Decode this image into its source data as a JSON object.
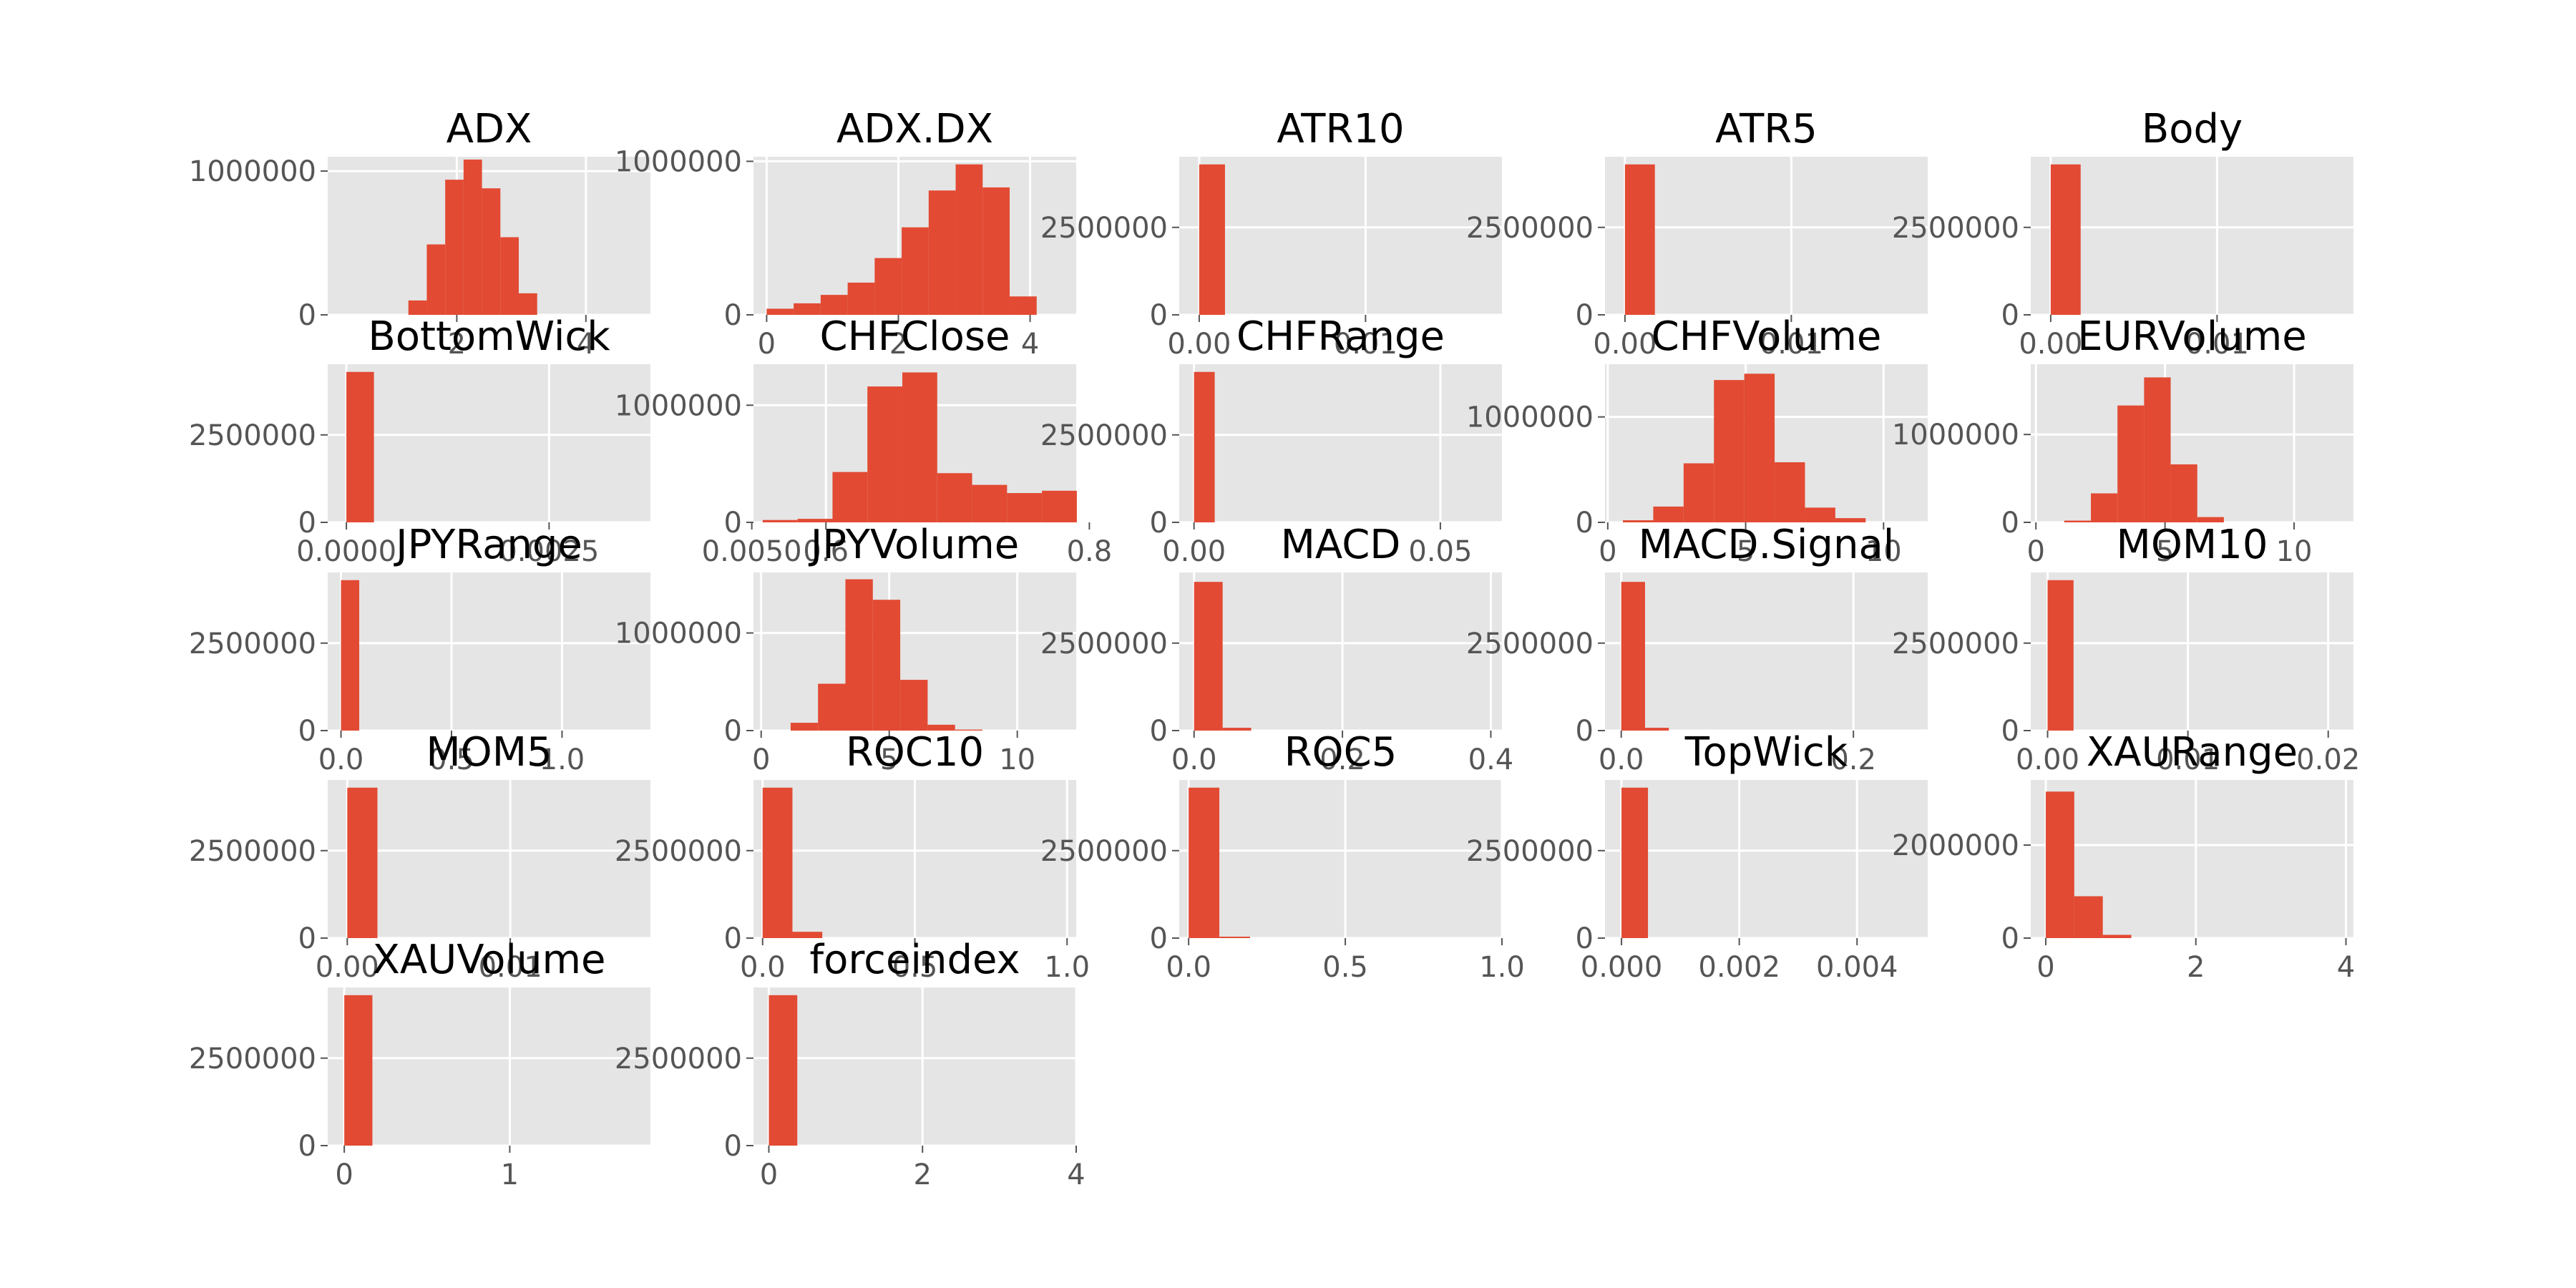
{
  "chart_data": [
    {
      "type": "bar",
      "title": "ADX",
      "bins": {
        "start": 1.25,
        "width": 0.285,
        "counts": [
          100000,
          490000,
          940000,
          1080000,
          880000,
          540000,
          150000
        ]
      },
      "xlim": [
        0,
        5
      ],
      "ylim": [
        0,
        1100000
      ],
      "xticks": [
        2,
        4
      ],
      "yticks": [
        0,
        1000000
      ],
      "ytick_labels": [
        "0",
        "1000000"
      ]
    },
    {
      "type": "bar",
      "title": "ADX.DX",
      "bins": {
        "start": 0,
        "width": 0.41,
        "counts": [
          40000,
          75000,
          130000,
          210000,
          370000,
          570000,
          810000,
          980000,
          830000,
          120000
        ]
      },
      "xlim": [
        -0.2,
        4.7
      ],
      "ylim": [
        0,
        1030000
      ],
      "xticks": [
        0,
        2,
        4
      ],
      "yticks": [
        0,
        1000000
      ],
      "ytick_labels": [
        "0",
        "1000000"
      ]
    },
    {
      "type": "bar",
      "title": "ATR10",
      "bins": {
        "start": 0,
        "width": 0.00155,
        "counts": [
          4300000
        ]
      },
      "xlim": [
        -0.0012,
        0.0182
      ],
      "ylim": [
        0,
        4520000
      ],
      "xticks": [
        0,
        0.01
      ],
      "xtick_labels": [
        "0.00",
        "0.01"
      ],
      "yticks": [
        0,
        2500000
      ],
      "ytick_labels": [
        "0",
        "2500000"
      ]
    },
    {
      "type": "bar",
      "title": "ATR5",
      "bins": {
        "start": 0,
        "width": 0.0018,
        "counts": [
          4300000
        ]
      },
      "xlim": [
        -0.0012,
        0.0182
      ],
      "ylim": [
        0,
        4520000
      ],
      "xticks": [
        0,
        0.01
      ],
      "xtick_labels": [
        "0.00",
        "0.01"
      ],
      "yticks": [
        0,
        2500000
      ],
      "ytick_labels": [
        "0",
        "2500000"
      ]
    },
    {
      "type": "bar",
      "title": "Body",
      "bins": {
        "start": 0,
        "width": 0.0018,
        "counts": [
          4300000
        ]
      },
      "xlim": [
        -0.0012,
        0.0182
      ],
      "ylim": [
        0,
        4520000
      ],
      "xticks": [
        0,
        0.01
      ],
      "xtick_labels": [
        "0.00",
        "0.01"
      ],
      "yticks": [
        0,
        2500000
      ],
      "ytick_labels": [
        "0",
        "2500000"
      ]
    },
    {
      "type": "bar",
      "title": "BottomWick",
      "bins": {
        "start": 0,
        "width": 0.00034,
        "counts": [
          4300000
        ]
      },
      "xlim": [
        -0.00023,
        0.00375
      ],
      "ylim": [
        0,
        4520000
      ],
      "xticks": [
        0,
        0.0025,
        0.005
      ],
      "xtick_labels": [
        "0.0000",
        "0.0025",
        "0.0050"
      ],
      "yticks": [
        0,
        2500000
      ],
      "ytick_labels": [
        "0",
        "2500000"
      ]
    },
    {
      "type": "bar",
      "title": "CHFClose",
      "bins": {
        "start": 0.552,
        "width": 0.0265,
        "counts": [
          20000,
          30000,
          430000,
          1160000,
          1280000,
          420000,
          320000,
          250000,
          270000
        ]
      },
      "xlim": [
        0.545,
        0.79
      ],
      "ylim": [
        0,
        1350000
      ],
      "xticks": [
        0.6,
        0.8
      ],
      "xtick_labels": [
        "0.6",
        "0.8"
      ],
      "yticks": [
        0,
        1000000
      ],
      "ytick_labels": [
        "0",
        "1000000"
      ]
    },
    {
      "type": "bar",
      "title": "CHFRange",
      "bins": {
        "start": 0,
        "width": 0.0042,
        "counts": [
          4300000
        ]
      },
      "xlim": [
        -0.003,
        0.0625
      ],
      "ylim": [
        0,
        4520000
      ],
      "xticks": [
        0,
        0.05
      ],
      "xtick_labels": [
        "0.00",
        "0.05"
      ],
      "yticks": [
        0,
        2500000
      ],
      "ytick_labels": [
        "0",
        "2500000"
      ]
    },
    {
      "type": "bar",
      "title": "CHFVolume",
      "bins": {
        "start": 0.55,
        "width": 1.1,
        "counts": [
          20000,
          150000,
          560000,
          1350000,
          1410000,
          570000,
          140000,
          40000
        ]
      },
      "xlim": [
        -0.1,
        11.6
      ],
      "ylim": [
        0,
        1500000
      ],
      "xticks": [
        0,
        5,
        10
      ],
      "yticks": [
        0,
        1000000
      ],
      "ytick_labels": [
        "0",
        "1000000"
      ]
    },
    {
      "type": "bar",
      "title": "EURVolume",
      "bins": {
        "start": 1.1,
        "width": 1.03,
        "counts": [
          20000,
          330000,
          1330000,
          1650000,
          660000,
          60000
        ]
      },
      "xlim": [
        -0.2,
        12.3
      ],
      "ylim": [
        0,
        1800000
      ],
      "xticks": [
        0,
        5,
        10
      ],
      "yticks": [
        0,
        1000000
      ],
      "ytick_labels": [
        "0",
        "1000000"
      ]
    },
    {
      "type": "bar",
      "title": "JPYRange",
      "bins": {
        "start": 0,
        "width": 0.0825,
        "counts": [
          4300000
        ]
      },
      "xlim": [
        -0.06,
        1.4
      ],
      "ylim": [
        0,
        4520000
      ],
      "xticks": [
        0,
        0.5,
        1.0
      ],
      "xtick_labels": [
        "0.0",
        "0.5",
        "1.0"
      ],
      "yticks": [
        0,
        2500000
      ],
      "ytick_labels": [
        "0",
        "2500000"
      ]
    },
    {
      "type": "bar",
      "title": "JPYVolume",
      "bins": {
        "start": 1.15,
        "width": 1.07,
        "counts": [
          80000,
          480000,
          1550000,
          1340000,
          520000,
          60000,
          10000
        ]
      },
      "xlim": [
        -0.3,
        12.3
      ],
      "ylim": [
        0,
        1620000
      ],
      "xticks": [
        0,
        5,
        10
      ],
      "yticks": [
        0,
        1000000
      ],
      "ytick_labels": [
        "0",
        "1000000"
      ]
    },
    {
      "type": "bar",
      "title": "MACD",
      "bins": {
        "start": 0,
        "width": 0.0385,
        "counts": [
          4250000,
          80000
        ]
      },
      "xlim": [
        -0.02,
        0.415
      ],
      "ylim": [
        0,
        4520000
      ],
      "xticks": [
        0,
        0.2,
        0.4
      ],
      "xtick_labels": [
        "0.0",
        "0.2",
        "0.4"
      ],
      "yticks": [
        0,
        2500000
      ],
      "ytick_labels": [
        "0",
        "2500000"
      ]
    },
    {
      "type": "bar",
      "title": "MACD.Signal",
      "bins": {
        "start": 0,
        "width": 0.0205,
        "counts": [
          4250000,
          80000
        ]
      },
      "xlim": [
        -0.014,
        0.264
      ],
      "ylim": [
        0,
        4520000
      ],
      "xticks": [
        0,
        0.2
      ],
      "xtick_labels": [
        "0.0",
        "0.2"
      ],
      "yticks": [
        0,
        2500000
      ],
      "ytick_labels": [
        "0",
        "2500000"
      ]
    },
    {
      "type": "bar",
      "title": "MOM10",
      "bins": {
        "start": 0,
        "width": 0.00185,
        "counts": [
          4300000
        ]
      },
      "xlim": [
        -0.0012,
        0.0218
      ],
      "ylim": [
        0,
        4520000
      ],
      "xticks": [
        0,
        0.01,
        0.02
      ],
      "xtick_labels": [
        "0.00",
        "0.01",
        "0.02"
      ],
      "yticks": [
        0,
        2500000
      ],
      "ytick_labels": [
        "0",
        "2500000"
      ]
    },
    {
      "type": "bar",
      "title": "MOM5",
      "bins": {
        "start": 0,
        "width": 0.00185,
        "counts": [
          4300000
        ]
      },
      "xlim": [
        -0.0012,
        0.0186
      ],
      "ylim": [
        0,
        4520000
      ],
      "xticks": [
        0,
        0.01
      ],
      "xtick_labels": [
        "0.00",
        "0.01"
      ],
      "yticks": [
        0,
        2500000
      ],
      "ytick_labels": [
        "0",
        "2500000"
      ]
    },
    {
      "type": "bar",
      "title": "ROC10",
      "bins": {
        "start": 0,
        "width": 0.098,
        "counts": [
          4300000,
          180000
        ]
      },
      "xlim": [
        -0.03,
        1.03
      ],
      "ylim": [
        0,
        4520000
      ],
      "xticks": [
        0,
        0.5,
        1.0
      ],
      "xtick_labels": [
        "0.0",
        "0.5",
        "1.0"
      ],
      "yticks": [
        0,
        2500000
      ],
      "ytick_labels": [
        "0",
        "2500000"
      ]
    },
    {
      "type": "bar",
      "title": "ROC5",
      "bins": {
        "start": 0,
        "width": 0.098,
        "counts": [
          4300000,
          40000
        ]
      },
      "xlim": [
        -0.03,
        1.0
      ],
      "ylim": [
        0,
        4520000
      ],
      "xticks": [
        0,
        0.5,
        1.0
      ],
      "xtick_labels": [
        "0.0",
        "0.5",
        "1.0"
      ],
      "yticks": [
        0,
        2500000
      ],
      "ytick_labels": [
        "0",
        "2500000"
      ]
    },
    {
      "type": "bar",
      "title": "TopWick",
      "bins": {
        "start": 0,
        "width": 0.00045,
        "counts": [
          4300000
        ]
      },
      "xlim": [
        -0.00028,
        0.0052
      ],
      "ylim": [
        0,
        4520000
      ],
      "xticks": [
        0,
        0.002,
        0.004
      ],
      "xtick_labels": [
        "0.000",
        "0.002",
        "0.004"
      ],
      "yticks": [
        0,
        2500000
      ],
      "ytick_labels": [
        "0",
        "2500000"
      ]
    },
    {
      "type": "bar",
      "title": "XAURange",
      "bins": {
        "start": 0,
        "width": 0.38,
        "counts": [
          3150000,
          900000,
          70000
        ]
      },
      "xlim": [
        -0.2,
        4.1
      ],
      "ylim": [
        0,
        3400000
      ],
      "xticks": [
        0,
        2,
        4
      ],
      "yticks": [
        0,
        2000000
      ],
      "ytick_labels": [
        "0",
        "2000000"
      ]
    },
    {
      "type": "bar",
      "title": "XAUVolume",
      "bins": {
        "start": 0,
        "width": 0.17,
        "counts": [
          4300000
        ]
      },
      "xlim": [
        -0.1,
        1.85
      ],
      "ylim": [
        0,
        4520000
      ],
      "xticks": [
        0,
        1
      ],
      "yticks": [
        0,
        2500000
      ],
      "ytick_labels": [
        "0",
        "2500000"
      ]
    },
    {
      "type": "bar",
      "title": "forceindex",
      "bins": {
        "start": 0,
        "width": 0.37,
        "counts": [
          4300000
        ]
      },
      "xlim": [
        -0.2,
        4.0
      ],
      "ylim": [
        0,
        4520000
      ],
      "xticks": [
        0,
        2,
        4
      ],
      "yticks": [
        0,
        2500000
      ],
      "ytick_labels": [
        "0",
        "2500000"
      ]
    }
  ]
}
